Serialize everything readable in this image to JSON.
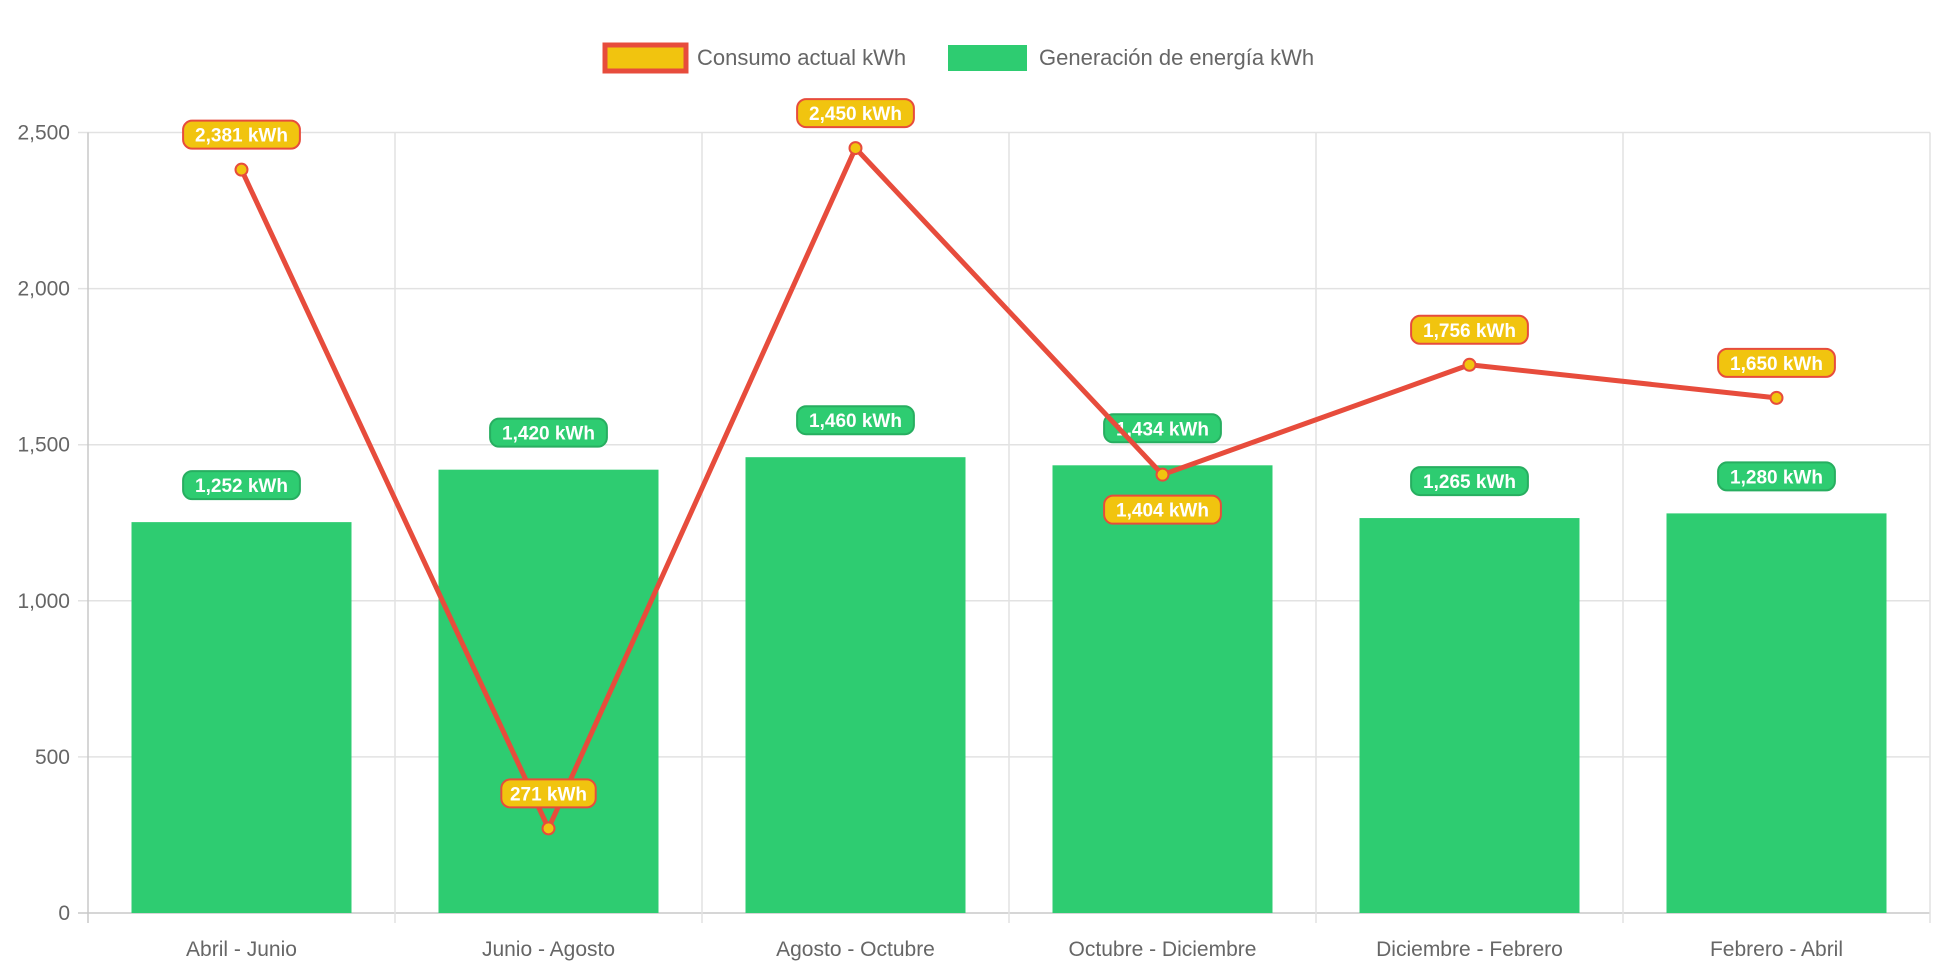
{
  "chart_data": {
    "type": "bar",
    "categories": [
      "Abril - Junio",
      "Junio - Agosto",
      "Agosto - Octubre",
      "Octubre - Diciembre",
      "Diciembre - Febrero",
      "Febrero - Abril"
    ],
    "series": [
      {
        "name": "Consumo actual kWh",
        "type": "line",
        "values": [
          2381,
          271,
          2450,
          1404,
          1756,
          1650
        ],
        "labels": [
          "2,381 kWh",
          "271 kWh",
          "2,450 kWh",
          "1,404 kWh",
          "1,756 kWh",
          "1,650 kWh"
        ],
        "line_color": "#e74c3c",
        "point_color": "#f1c40f"
      },
      {
        "name": "Generación de energía kWh",
        "type": "bar",
        "values": [
          1252,
          1420,
          1460,
          1434,
          1265,
          1280
        ],
        "labels": [
          "1,252 kWh",
          "1,420 kWh",
          "1,460 kWh",
          "1,434 kWh",
          "1,265 kWh",
          "1,280 kWh"
        ],
        "color": "#2ecc71"
      }
    ],
    "yticks": [
      0,
      500,
      1000,
      1500,
      2000,
      2500
    ],
    "ytick_labels": [
      "0",
      "500",
      "1,000",
      "1,500",
      "2,000",
      "2,500"
    ],
    "ylim": [
      0,
      2500
    ],
    "grid": true,
    "legend": "top-center",
    "title": "",
    "xlabel": "",
    "ylabel": ""
  }
}
